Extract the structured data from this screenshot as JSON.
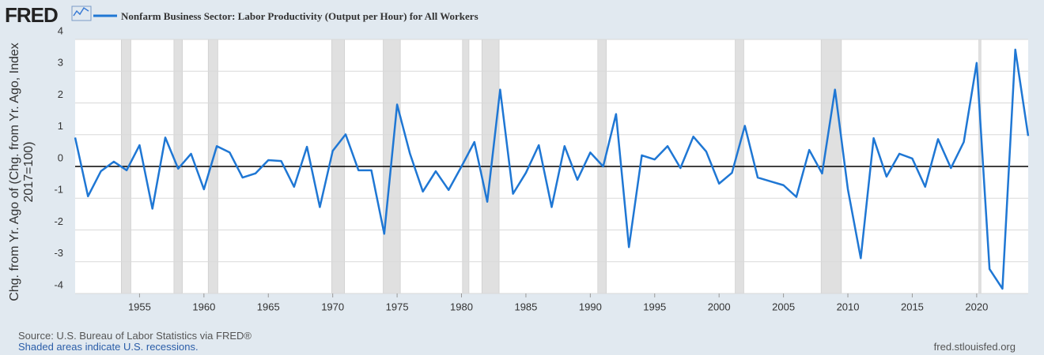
{
  "chart_data": {
    "type": "line",
    "brand": "FRED",
    "ylabel": "Chg. from Yr. Ago of (Chg. from Yr. Ago, Index 2017=100)",
    "source": "Source: U.S. Bureau of Labor Statistics via FRED®",
    "note": "Shaded areas indicate U.S. recessions.",
    "site": "fred.stlouisfed.org",
    "x": [
      1950,
      1951,
      1952,
      1953,
      1954,
      1955,
      1956,
      1957,
      1958,
      1959,
      1960,
      1961,
      1962,
      1963,
      1964,
      1965,
      1966,
      1967,
      1968,
      1969,
      1970,
      1971,
      1972,
      1973,
      1974,
      1975,
      1976,
      1977,
      1978,
      1979,
      1980,
      1981,
      1982,
      1983,
      1984,
      1985,
      1986,
      1987,
      1988,
      1989,
      1990,
      1991,
      1992,
      1993,
      1994,
      1995,
      1996,
      1997,
      1998,
      1999,
      2000,
      2001,
      2002,
      2003,
      2004,
      2005,
      2006,
      2007,
      2008,
      2009,
      2010,
      2011,
      2012,
      2013,
      2014,
      2015,
      2016,
      2017,
      2018,
      2019,
      2020,
      2021,
      2022,
      2023,
      2024
    ],
    "series": [
      {
        "name": "Nonfarm Business Sector: Labor Productivity (Output per Hour) for All Workers",
        "color": "#1f77d4",
        "values": [
          0.91,
          -0.94,
          -0.15,
          0.15,
          -0.12,
          0.67,
          -1.33,
          0.91,
          -0.07,
          0.4,
          -0.72,
          0.64,
          0.44,
          -0.35,
          -0.22,
          0.2,
          0.17,
          -0.64,
          0.62,
          -1.28,
          0.49,
          1.01,
          -0.12,
          -0.12,
          -2.12,
          1.95,
          0.4,
          -0.79,
          -0.15,
          -0.74,
          0,
          0.77,
          -1.11,
          2.42,
          -0.86,
          -0.2,
          0.67,
          -1.28,
          0.64,
          -0.42,
          0.44,
          0,
          1.65,
          -2.54,
          0.35,
          0.22,
          0.64,
          -0.05,
          0.94,
          0.47,
          -0.54,
          -0.2,
          1.28,
          -0.35,
          -0.47,
          -0.59,
          -0.96,
          0.52,
          -0.22,
          2.42,
          -0.72,
          -2.89,
          0.89,
          -0.32,
          0.4,
          0.25,
          -0.64,
          0.86,
          -0.05,
          0.77,
          3.26,
          -3.23,
          -3.85,
          3.68,
          0.96
        ]
      }
    ],
    "xlim": [
      1950,
      2024
    ],
    "xticks": [
      1955,
      1960,
      1965,
      1970,
      1975,
      1980,
      1985,
      1990,
      1995,
      2000,
      2005,
      2010,
      2015,
      2020
    ],
    "ylim": [
      -4,
      4
    ],
    "yticks": [
      -4,
      -3,
      -2,
      -1,
      0,
      1,
      2,
      3,
      4
    ],
    "grid": true,
    "zero_line": true,
    "recession_color": "#e0e0e0",
    "recessions": [
      {
        "start": 1953.58,
        "end": 1954.33
      },
      {
        "start": 1957.67,
        "end": 1958.33
      },
      {
        "start": 1960.33,
        "end": 1961.08
      },
      {
        "start": 1969.92,
        "end": 1970.92
      },
      {
        "start": 1973.92,
        "end": 1975.25
      },
      {
        "start": 1980.08,
        "end": 1980.58
      },
      {
        "start": 1981.58,
        "end": 1982.92
      },
      {
        "start": 1990.58,
        "end": 1991.25
      },
      {
        "start": 2001.25,
        "end": 2001.92
      },
      {
        "start": 2007.92,
        "end": 2009.5
      },
      {
        "start": 2020.17,
        "end": 2020.33
      }
    ]
  }
}
